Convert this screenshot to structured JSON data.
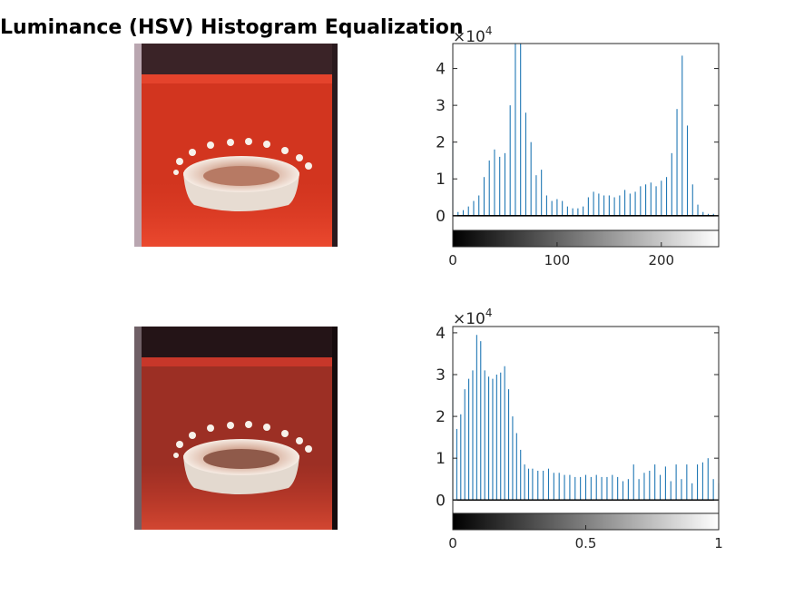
{
  "title": "Luminance (HSV) Histogram Equalization",
  "colors": {
    "stem": "#1f77b4",
    "axis": "#262626",
    "photo_bg": "#c8311f"
  },
  "chart_data": [
    {
      "type": "bar",
      "subtype": "stem-histogram",
      "xlim": [
        0,
        255
      ],
      "ylim": [
        -4000,
        46800
      ],
      "y_exponent_label": "×10",
      "y_exponent_sup": "4",
      "xticks": [
        0,
        100,
        200
      ],
      "xtick_labels": [
        "0",
        "100",
        "200"
      ],
      "yticks": [
        0,
        10000,
        20000,
        30000,
        40000
      ],
      "ytick_labels": [
        "0",
        "1",
        "2",
        "3",
        "4"
      ],
      "colorbar": "grayscale 0-255",
      "x": [
        0,
        5,
        10,
        15,
        20,
        25,
        30,
        35,
        40,
        45,
        50,
        55,
        60,
        65,
        70,
        75,
        80,
        85,
        90,
        95,
        100,
        105,
        110,
        115,
        120,
        125,
        130,
        135,
        140,
        145,
        150,
        155,
        160,
        165,
        170,
        175,
        180,
        185,
        190,
        195,
        200,
        205,
        210,
        215,
        220,
        225,
        230,
        235,
        240,
        245,
        250,
        255
      ],
      "values": [
        20000,
        1000,
        1500,
        2500,
        4000,
        5500,
        10500,
        15000,
        18000,
        16000,
        17000,
        30000,
        47000,
        47000,
        28000,
        20000,
        11000,
        12500,
        5500,
        4000,
        4500,
        4000,
        2500,
        2000,
        2000,
        2500,
        5000,
        6500,
        6000,
        5500,
        5500,
        5000,
        5500,
        7000,
        6000,
        6500,
        8000,
        8500,
        9000,
        8000,
        9500,
        10500,
        17000,
        29000,
        43500,
        24500,
        8500,
        3000,
        1000,
        500,
        500,
        300
      ]
    },
    {
      "type": "bar",
      "subtype": "stem-histogram",
      "xlim": [
        0,
        1
      ],
      "ylim": [
        -3200,
        41500
      ],
      "y_exponent_label": "×10",
      "y_exponent_sup": "4",
      "xticks": [
        0,
        0.5,
        1
      ],
      "xtick_labels": [
        "0",
        "0.5",
        "1"
      ],
      "yticks": [
        0,
        10000,
        20000,
        30000,
        40000
      ],
      "ytick_labels": [
        "0",
        "1",
        "2",
        "3",
        "4"
      ],
      "colorbar": "grayscale 0-1",
      "x": [
        0.0,
        0.015,
        0.03,
        0.045,
        0.06,
        0.075,
        0.09,
        0.105,
        0.12,
        0.135,
        0.15,
        0.165,
        0.18,
        0.195,
        0.21,
        0.225,
        0.24,
        0.255,
        0.27,
        0.285,
        0.3,
        0.32,
        0.34,
        0.36,
        0.38,
        0.4,
        0.42,
        0.44,
        0.46,
        0.48,
        0.5,
        0.52,
        0.54,
        0.56,
        0.58,
        0.6,
        0.62,
        0.64,
        0.66,
        0.68,
        0.7,
        0.72,
        0.74,
        0.76,
        0.78,
        0.8,
        0.82,
        0.84,
        0.86,
        0.88,
        0.9,
        0.92,
        0.94,
        0.96,
        0.98,
        1.0
      ],
      "values": [
        30000,
        17000,
        20500,
        26500,
        29000,
        31000,
        39500,
        38000,
        31000,
        29500,
        29000,
        30000,
        30500,
        32000,
        26500,
        20000,
        16000,
        12000,
        8500,
        7500,
        7500,
        7000,
        7000,
        7500,
        6500,
        6500,
        6000,
        6000,
        5500,
        5500,
        6000,
        5500,
        6000,
        5500,
        5500,
        6000,
        5500,
        4500,
        5000,
        8500,
        5000,
        6500,
        7000,
        8500,
        6000,
        8000,
        4500,
        8500,
        5000,
        8500,
        4000,
        8500,
        9000,
        10000,
        5000,
        4000
      ]
    }
  ]
}
